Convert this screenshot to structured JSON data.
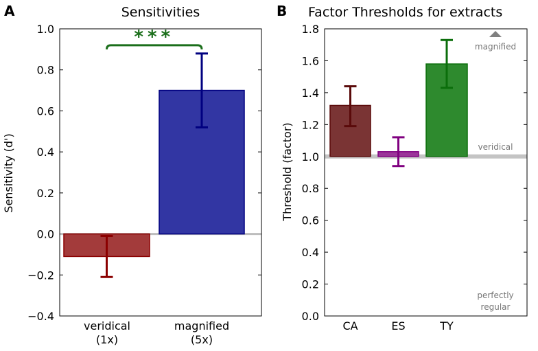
{
  "chart_data": [
    {
      "panel_label": "A",
      "type": "bar",
      "title": "Sensitivities",
      "xlabel": "",
      "ylabel": "Sensitivity (d')",
      "ylim": [
        -0.4,
        1.0
      ],
      "yticks": [
        "−0.4",
        "−0.2",
        "0.0",
        "0.2",
        "0.4",
        "0.6",
        "0.8",
        "1.0"
      ],
      "ytick_values": [
        -0.4,
        -0.2,
        0.0,
        0.2,
        0.4,
        0.6,
        0.8,
        1.0
      ],
      "categories": [
        {
          "line1": "veridical",
          "line2": "(1x)"
        },
        {
          "line1": "magnified",
          "line2": "(5x)"
        }
      ],
      "values": [
        -0.11,
        0.7
      ],
      "error_low": [
        -0.21,
        0.52
      ],
      "error_high": [
        -0.01,
        0.88
      ],
      "bar_colors": [
        "#a33b3b",
        "#3236a3"
      ],
      "error_colors": [
        "#8b0000",
        "#000080"
      ],
      "reference_line": 0.0,
      "significance": {
        "label": "***",
        "between": [
          0,
          1
        ],
        "y": 0.92,
        "color": "#1a6e1a"
      }
    },
    {
      "panel_label": "B",
      "type": "bar",
      "title": "Factor Thresholds for extracts",
      "xlabel": "",
      "ylabel": "Threshold (factor)",
      "ylim": [
        0.0,
        1.8
      ],
      "yticks": [
        "0.0",
        "0.2",
        "0.4",
        "0.6",
        "0.8",
        "1.0",
        "1.2",
        "1.4",
        "1.6",
        "1.8"
      ],
      "ytick_values": [
        0.0,
        0.2,
        0.4,
        0.6,
        0.8,
        1.0,
        1.2,
        1.4,
        1.6,
        1.8
      ],
      "categories": [
        "CA",
        "ES",
        "TY"
      ],
      "values": [
        1.32,
        1.03,
        1.58
      ],
      "error_low": [
        1.19,
        0.94,
        1.43
      ],
      "error_high": [
        1.44,
        1.12,
        1.73
      ],
      "bar_colors": [
        "#7a3434",
        "#9b3599",
        "#2e8a2e"
      ],
      "error_colors": [
        "#5a0a0a",
        "#800080",
        "#0b6e0b"
      ],
      "reference_line": 1.0,
      "reference_labels": {
        "top": "magnified",
        "middle": "veridical",
        "bottom_line1": "perfectly",
        "bottom_line2": "regular"
      }
    }
  ]
}
